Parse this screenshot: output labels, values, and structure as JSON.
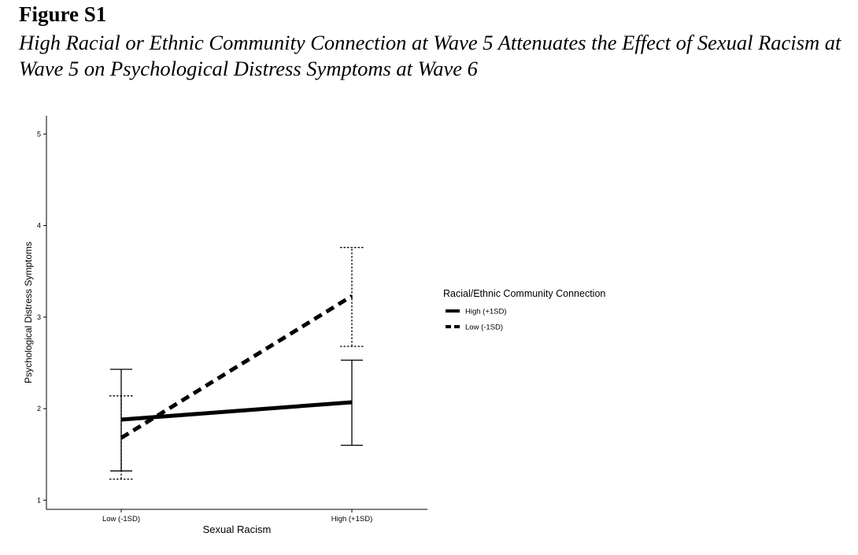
{
  "figure": {
    "label": "Figure S1",
    "title": "High Racial or Ethnic Community Connection at Wave 5 Attenuates the Effect of Sexual Racism at Wave 5 on Psychological Distress Symptoms at Wave 6"
  },
  "chart_data": {
    "type": "line",
    "xlabel": "Sexual Racism",
    "ylabel": "Psychological Distress Symptoms",
    "categories": [
      "Low (-1SD)",
      "High (+1SD)"
    ],
    "ylim": [
      0.9,
      5.2
    ],
    "yticks": [
      1,
      2,
      3,
      4,
      5
    ],
    "grid": false,
    "legend": {
      "title": "Racial/Ethnic Community Connection",
      "placement": "right"
    },
    "series": [
      {
        "name": "High (+1SD)",
        "line_style": "solid",
        "values": [
          1.88,
          2.07
        ],
        "error_low": [
          1.32,
          1.6
        ],
        "error_high": [
          2.43,
          2.53
        ]
      },
      {
        "name": "Low (-1SD)",
        "line_style": "dashed",
        "values": [
          1.68,
          3.23
        ],
        "error_low": [
          1.23,
          2.68
        ],
        "error_high": [
          2.14,
          3.76
        ]
      }
    ]
  }
}
